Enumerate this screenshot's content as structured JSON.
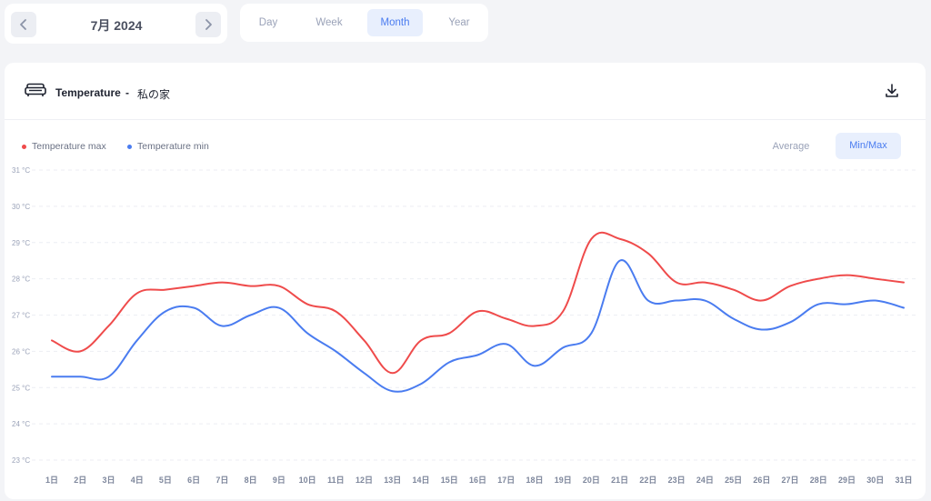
{
  "date_nav": {
    "label": "7月 2024",
    "prev_icon": "chevron-left-icon",
    "next_icon": "chevron-right-icon"
  },
  "period_tabs": [
    {
      "label": "Day",
      "active": false
    },
    {
      "label": "Week",
      "active": false
    },
    {
      "label": "Month",
      "active": true
    },
    {
      "label": "Year",
      "active": false
    }
  ],
  "card": {
    "icon": "sofa-icon",
    "title": "Temperature",
    "separator": "-",
    "location": "私の家",
    "download_icon": "download-icon"
  },
  "legend": [
    {
      "label": "Temperature max",
      "color": "#ef4b4b"
    },
    {
      "label": "Temperature min",
      "color": "#4a7cf0"
    }
  ],
  "modes": {
    "average": "Average",
    "minmax": "Min/Max",
    "active": "minmax"
  },
  "chart_data": {
    "type": "line",
    "ylim": [
      23,
      31
    ],
    "ytick_labels": [
      "31 °C",
      "30 °C",
      "29 °C",
      "28 °C",
      "27 °C",
      "26 °C",
      "25 °C",
      "24 °C",
      "23 °C"
    ],
    "categories": [
      "1日",
      "2日",
      "3日",
      "4日",
      "5日",
      "6日",
      "7日",
      "8日",
      "9日",
      "10日",
      "11日",
      "12日",
      "13日",
      "14日",
      "15日",
      "16日",
      "17日",
      "18日",
      "19日",
      "20日",
      "21日",
      "22日",
      "23日",
      "24日",
      "25日",
      "26日",
      "27日",
      "28日",
      "29日",
      "30日",
      "31日"
    ],
    "grid": true,
    "series": [
      {
        "name": "Temperature max",
        "color": "#ef4b4b",
        "values": [
          26.3,
          26.0,
          26.7,
          27.6,
          27.7,
          27.8,
          27.9,
          27.8,
          27.8,
          27.3,
          27.1,
          26.3,
          25.4,
          26.3,
          26.5,
          27.1,
          26.9,
          26.7,
          27.1,
          29.1,
          29.1,
          28.7,
          27.9,
          27.9,
          27.7,
          27.4,
          27.8,
          28.0,
          28.1,
          28.0,
          27.9
        ]
      },
      {
        "name": "Temperature min",
        "color": "#4a7cf0",
        "values": [
          25.3,
          25.3,
          25.3,
          26.3,
          27.1,
          27.2,
          26.7,
          27.0,
          27.2,
          26.5,
          26.0,
          25.4,
          24.9,
          25.1,
          25.7,
          25.9,
          26.2,
          25.6,
          26.1,
          26.5,
          28.5,
          27.4,
          27.4,
          27.4,
          26.9,
          26.6,
          26.8,
          27.3,
          27.3,
          27.4,
          27.2
        ]
      }
    ]
  }
}
